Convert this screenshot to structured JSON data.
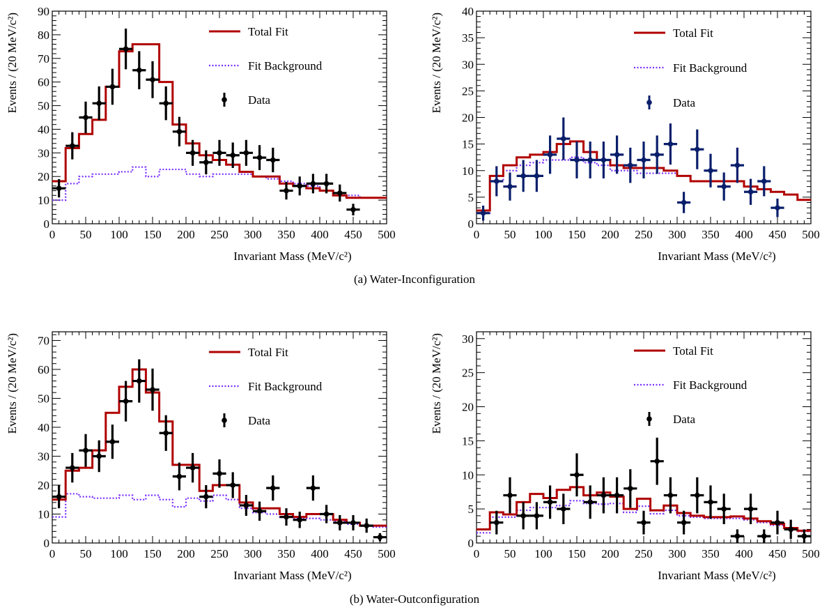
{
  "captions": {
    "a": "(a) Water-Inconfiguration",
    "b": "(b) Water-Outconfiguration"
  },
  "legend": {
    "total_fit": "Total Fit",
    "fit_background": "Fit Background",
    "data": "Data"
  },
  "colors": {
    "total_fit": "#b00000",
    "background": "#7a2cff",
    "data_top_left": "#000000",
    "data_top_right": "#0a1f6b",
    "data_bottom": "#000000"
  },
  "chart_data": [
    {
      "type": "histogram",
      "xlabel": "Invariant Mass (MeV/c²)",
      "ylabel": "Events / (20 MeV/c²)",
      "xlim": [
        0,
        500
      ],
      "ylim": [
        0,
        90
      ],
      "xticks": [
        0,
        50,
        100,
        150,
        200,
        250,
        300,
        350,
        400,
        450,
        500
      ],
      "yticks": [
        0,
        10,
        20,
        30,
        40,
        50,
        60,
        70,
        80,
        90
      ],
      "bin_edges": [
        0,
        20,
        40,
        60,
        80,
        100,
        120,
        140,
        160,
        180,
        200,
        220,
        240,
        260,
        280,
        300,
        320,
        340,
        360,
        380,
        400,
        420,
        440,
        460,
        480,
        500
      ],
      "data_color": "#000000",
      "data": {
        "x": [
          10,
          30,
          50,
          70,
          90,
          110,
          130,
          150,
          170,
          190,
          210,
          230,
          250,
          270,
          290,
          310,
          330,
          350,
          370,
          390,
          410,
          430,
          450
        ],
        "y": [
          15,
          33,
          45,
          51,
          58,
          74,
          65,
          61,
          51,
          39,
          30,
          26,
          30,
          29,
          30,
          28,
          27,
          14,
          16,
          17,
          17,
          13,
          6
        ]
      },
      "total_fit": [
        18,
        32,
        38,
        44,
        58,
        73,
        76,
        76,
        60,
        42,
        34,
        29,
        27,
        25,
        22,
        20,
        20,
        17,
        16,
        15,
        14,
        12,
        11,
        11,
        11
      ],
      "background": [
        10,
        17,
        20,
        21,
        21,
        22,
        24,
        20,
        23,
        23,
        21,
        20,
        21,
        21,
        21,
        20,
        19,
        18,
        17,
        16,
        14,
        12,
        12,
        11,
        11
      ]
    },
    {
      "type": "histogram",
      "xlabel": "Invariant Mass (MeV/c²)",
      "ylabel": "Events / (20 MeV/c²)",
      "xlim": [
        0,
        500
      ],
      "ylim": [
        0,
        40
      ],
      "xticks": [
        0,
        50,
        100,
        150,
        200,
        250,
        300,
        350,
        400,
        450,
        500
      ],
      "yticks": [
        0,
        5,
        10,
        15,
        20,
        25,
        30,
        35,
        40
      ],
      "bin_edges": [
        0,
        20,
        40,
        60,
        80,
        100,
        120,
        140,
        160,
        180,
        200,
        220,
        240,
        260,
        280,
        300,
        320,
        340,
        360,
        380,
        400,
        420,
        440,
        460,
        480,
        500
      ],
      "data_color": "#0a1f6b",
      "data": {
        "x": [
          10,
          30,
          50,
          70,
          90,
          110,
          130,
          150,
          170,
          190,
          210,
          230,
          250,
          270,
          290,
          310,
          330,
          350,
          370,
          390,
          410,
          430,
          450
        ],
        "y": [
          2,
          8,
          7,
          9,
          9,
          13,
          16,
          12,
          12,
          12,
          13,
          11,
          12,
          13,
          15,
          4,
          14,
          10,
          7,
          11,
          6,
          8,
          3
        ]
      },
      "total_fit": [
        2.5,
        9,
        11,
        12.5,
        13,
        13.5,
        15,
        15.5,
        13.5,
        12,
        11,
        10.5,
        10.5,
        10.5,
        10,
        9,
        8,
        8,
        8,
        8,
        7,
        6.5,
        6,
        5.5,
        4.5
      ],
      "background": [
        2,
        8,
        10,
        11,
        11.5,
        12,
        12,
        12.5,
        11.5,
        11,
        10,
        10,
        9.5,
        9.5,
        9.5,
        9,
        8,
        8,
        8,
        8,
        7,
        6.5,
        6,
        5.5,
        4.5
      ]
    },
    {
      "type": "histogram",
      "xlabel": "Invariant Mass (MeV/c²)",
      "ylabel": "Events / (20 MeV/c²)",
      "xlim": [
        0,
        500
      ],
      "ylim": [
        0,
        73
      ],
      "xticks": [
        0,
        50,
        100,
        150,
        200,
        250,
        300,
        350,
        400,
        450,
        500
      ],
      "yticks": [
        0,
        10,
        20,
        30,
        40,
        50,
        60,
        70
      ],
      "bin_edges": [
        0,
        20,
        40,
        60,
        80,
        100,
        120,
        140,
        160,
        180,
        200,
        220,
        240,
        260,
        280,
        300,
        320,
        340,
        360,
        380,
        400,
        420,
        440,
        460,
        480,
        500
      ],
      "data_color": "#000000",
      "data": {
        "x": [
          10,
          30,
          50,
          70,
          90,
          110,
          130,
          150,
          170,
          190,
          210,
          230,
          250,
          270,
          290,
          310,
          330,
          350,
          370,
          390,
          410,
          430,
          450,
          470,
          490
        ],
        "y": [
          16,
          26,
          32,
          30,
          35,
          49,
          56,
          53,
          38,
          23,
          26,
          16,
          24,
          20,
          13,
          11,
          19,
          9,
          8,
          19,
          10,
          7,
          7,
          6,
          2
        ]
      },
      "total_fit": [
        15,
        25,
        26,
        32,
        45,
        54,
        60,
        52,
        42,
        27,
        27,
        18,
        20,
        20,
        14,
        12,
        12,
        10,
        9,
        10,
        10,
        8,
        7,
        6,
        6
      ],
      "background": [
        9,
        17,
        16,
        15.5,
        15.5,
        16.5,
        15,
        16.5,
        15,
        12.5,
        15.5,
        14.5,
        16.5,
        15,
        12,
        10.5,
        10,
        9,
        8.5,
        8.5,
        8,
        7.5,
        6.5,
        6,
        5.5
      ]
    },
    {
      "type": "histogram",
      "xlabel": "Invariant Mass (MeV/c²)",
      "ylabel": "Events / (20 MeV/c²)",
      "xlim": [
        0,
        500
      ],
      "ylim": [
        0,
        31
      ],
      "xticks": [
        0,
        50,
        100,
        150,
        200,
        250,
        300,
        350,
        400,
        450,
        500
      ],
      "yticks": [
        0,
        5,
        10,
        15,
        20,
        25,
        30
      ],
      "bin_edges": [
        0,
        20,
        40,
        60,
        80,
        100,
        120,
        140,
        160,
        180,
        200,
        220,
        240,
        260,
        280,
        300,
        320,
        340,
        360,
        380,
        400,
        420,
        440,
        460,
        480,
        500
      ],
      "data_color": "#000000",
      "data": {
        "x": [
          30,
          50,
          70,
          90,
          110,
          130,
          150,
          170,
          190,
          210,
          230,
          250,
          270,
          290,
          310,
          330,
          350,
          370,
          390,
          410,
          430,
          450,
          470,
          490
        ],
        "y": [
          3,
          7,
          4,
          4,
          6,
          5,
          10,
          6,
          7,
          7,
          8,
          3,
          12,
          7,
          3,
          7,
          6,
          5,
          1,
          5,
          1,
          3,
          2,
          1
        ]
      },
      "total_fit": [
        2,
        4.5,
        4.2,
        6,
        7.2,
        6.6,
        7.8,
        8.2,
        7,
        7.4,
        6.8,
        5,
        6.5,
        4.8,
        5.5,
        4.4,
        4,
        3.8,
        3.8,
        3.9,
        3.6,
        3.2,
        2.8,
        2.2,
        1.8
      ],
      "background": [
        1.5,
        3.8,
        3.8,
        4.8,
        5.2,
        5.2,
        5.5,
        6.2,
        5.8,
        5.7,
        5.8,
        4.5,
        5.4,
        4.3,
        4.8,
        4,
        3.8,
        3.6,
        3.6,
        3.6,
        3.4,
        3,
        2.6,
        2.1,
        1.7
      ]
    }
  ]
}
